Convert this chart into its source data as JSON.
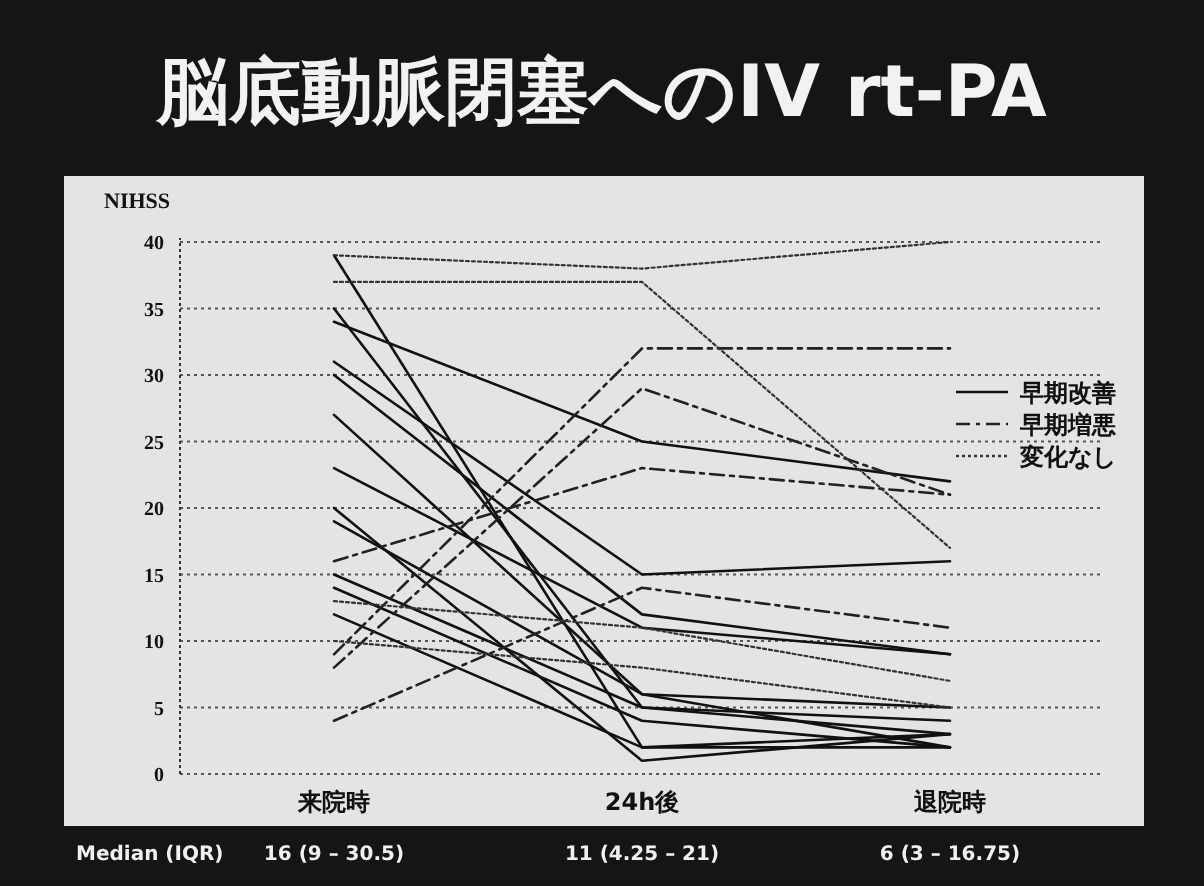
{
  "chart_data": {
    "type": "line",
    "title": "脳底動脈閉塞へのIV rt-PA",
    "ylabel": "NIHSS",
    "categories": [
      "来院時",
      "24h後",
      "退院時"
    ],
    "ylim": [
      0,
      40
    ],
    "yticks": [
      0,
      5,
      10,
      15,
      20,
      25,
      30,
      35,
      40
    ],
    "grid": "y",
    "legend": "right",
    "marker": "none",
    "series": [
      {
        "name": "早期改善",
        "color": "#111111",
        "line_style": "solid",
        "values": [
          39,
          2,
          3
        ]
      },
      {
        "color": "#111111",
        "line_style": "solid",
        "values": [
          34,
          25,
          22
        ]
      },
      {
        "color": "#111111",
        "line_style": "solid",
        "values": [
          35,
          5,
          4
        ]
      },
      {
        "color": "#111111",
        "line_style": "solid",
        "values": [
          31,
          15,
          16
        ]
      },
      {
        "color": "#111111",
        "line_style": "solid",
        "values": [
          30,
          12,
          9
        ]
      },
      {
        "color": "#111111",
        "line_style": "solid",
        "values": [
          27,
          6,
          5
        ]
      },
      {
        "color": "#111111",
        "line_style": "solid",
        "values": [
          23,
          11,
          9
        ]
      },
      {
        "color": "#111111",
        "line_style": "solid",
        "values": [
          20,
          1,
          3
        ]
      },
      {
        "color": "#111111",
        "line_style": "solid",
        "values": [
          19,
          6,
          2
        ]
      },
      {
        "color": "#111111",
        "line_style": "solid",
        "values": [
          15,
          5,
          3
        ]
      },
      {
        "color": "#111111",
        "line_style": "solid",
        "values": [
          14,
          4,
          2
        ]
      },
      {
        "color": "#111111",
        "line_style": "solid",
        "values": [
          12,
          2,
          2
        ]
      },
      {
        "name": "早期増悪",
        "color": "#222222",
        "line_style": "dashed",
        "values": [
          16,
          23,
          21
        ]
      },
      {
        "color": "#222222",
        "line_style": "dashed",
        "values": [
          9,
          32,
          32
        ]
      },
      {
        "color": "#222222",
        "line_style": "dashed",
        "values": [
          8,
          29,
          21
        ]
      },
      {
        "color": "#222222",
        "line_style": "dashed",
        "values": [
          4,
          14,
          11
        ]
      },
      {
        "name": "変化なし",
        "color": "#333333",
        "line_style": "dotted",
        "values": [
          39,
          38,
          40
        ]
      },
      {
        "color": "#333333",
        "line_style": "dotted",
        "values": [
          37,
          37,
          17
        ]
      },
      {
        "color": "#333333",
        "line_style": "dotted",
        "values": [
          13,
          11,
          7
        ]
      },
      {
        "color": "#333333",
        "line_style": "dotted",
        "values": [
          10,
          8,
          5
        ]
      }
    ],
    "annotations": [
      "Median (IQR)",
      "16 (9 – 30.5)",
      "11 (4.25 – 21)",
      "6 (3 – 16.75)"
    ]
  }
}
